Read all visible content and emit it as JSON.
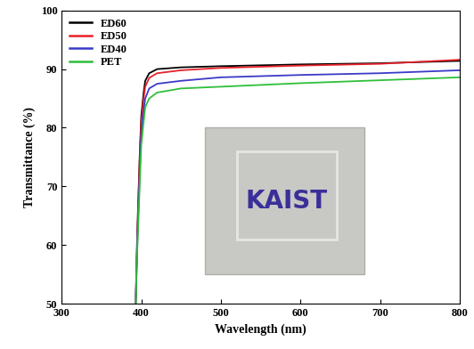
{
  "chart_data": {
    "type": "line",
    "x_label": "Wavelength (nm)",
    "y_label": "Transmittance (%)",
    "x": [
      393,
      395,
      398,
      400,
      403,
      405,
      410,
      420,
      450,
      500,
      600,
      700,
      800
    ],
    "series": [
      {
        "name": "ED60",
        "color": "#000000",
        "values": [
          50,
          62,
          75,
          82,
          86,
          88,
          89.3,
          90.0,
          90.3,
          90.5,
          90.8,
          91.0,
          91.4
        ]
      },
      {
        "name": "ED50",
        "color": "#e8212a",
        "values": [
          50,
          61,
          74,
          81,
          85,
          87,
          88.5,
          89.3,
          89.8,
          90.2,
          90.6,
          90.9,
          91.6
        ]
      },
      {
        "name": "ED40",
        "color": "#3a3ac8",
        "values": [
          50,
          60,
          72,
          79,
          83,
          85,
          86.7,
          87.5,
          88.0,
          88.6,
          89.0,
          89.3,
          89.8
        ]
      },
      {
        "name": "PET",
        "color": "#2fbf3a",
        "values": [
          50,
          59,
          70,
          77,
          81,
          83.5,
          85,
          86,
          86.7,
          87.0,
          87.6,
          88.1,
          88.6
        ]
      }
    ],
    "xlim": [
      300,
      800
    ],
    "xticks": [
      300,
      400,
      500,
      600,
      700,
      800
    ],
    "ylim": [
      50,
      100
    ],
    "yticks": [
      50,
      60,
      70,
      80,
      90,
      100
    ],
    "legend": "upper left",
    "annotations": [
      "KAIST"
    ]
  }
}
